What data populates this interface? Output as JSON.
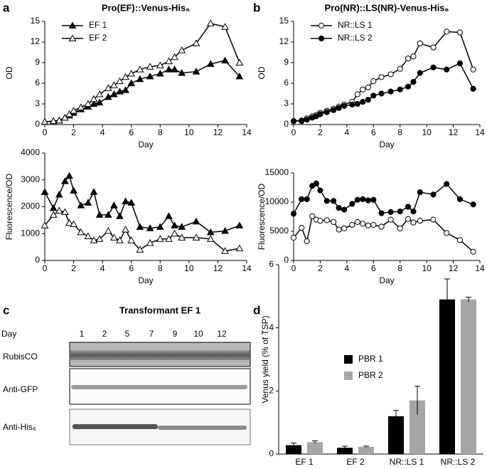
{
  "panel_labels": [
    "a",
    "b",
    "c",
    "d"
  ],
  "chart_data": [
    {
      "type": "line",
      "title": "Pro(EF)::Venus-His₆",
      "xlabel": "Day",
      "ylabel": "OD",
      "x": [
        0,
        0.6,
        1,
        1.4,
        1.7,
        2,
        2.5,
        3,
        3.4,
        3.8,
        4.4,
        4.8,
        5.2,
        5.6,
        6,
        6.6,
        7.3,
        8,
        8.6,
        9,
        9.5,
        10.5,
        11.5,
        12.5,
        13.5
      ],
      "xlim": [
        0,
        14
      ],
      "xticks": [
        0,
        2,
        4,
        6,
        8,
        10,
        12,
        14
      ],
      "ylim": [
        0,
        15
      ],
      "yticks": [
        0,
        3,
        6,
        9,
        12,
        15
      ],
      "legend": "upper left",
      "series": [
        {
          "name": "EF 1",
          "color": "#000000",
          "marker": "triangle",
          "filled": true,
          "values": [
            0.4,
            0.5,
            0.6,
            1.0,
            1.3,
            1.7,
            2.2,
            2.6,
            3.0,
            3.2,
            4.0,
            4.4,
            4.8,
            5.0,
            6.0,
            6.6,
            7.0,
            7.4,
            8.0,
            8.0,
            7.5,
            7.7,
            8.8,
            9.3,
            7.0
          ]
        },
        {
          "name": "EF 2",
          "color": "#000000",
          "marker": "triangle",
          "filled": false,
          "values": [
            0.4,
            0.5,
            0.6,
            1.0,
            1.5,
            2.0,
            2.5,
            3.0,
            3.7,
            4.4,
            5.3,
            5.7,
            6.3,
            6.9,
            7.4,
            8.0,
            8.4,
            8.6,
            9.2,
            9.8,
            10.8,
            11.8,
            14.7,
            14.2,
            9.0
          ]
        }
      ]
    },
    {
      "type": "line",
      "xlabel": "Day",
      "ylabel": "Fluorescence/OD",
      "x": [
        0,
        0.6,
        1,
        1.4,
        1.7,
        2,
        2.5,
        3,
        3.4,
        3.8,
        4.4,
        4.8,
        5.2,
        5.6,
        6,
        6.6,
        7.3,
        8,
        8.6,
        9,
        9.5,
        10.5,
        11.5,
        12.5,
        13.5
      ],
      "xlim": [
        0,
        14
      ],
      "xticks": [
        0,
        2,
        4,
        6,
        8,
        10,
        12,
        14
      ],
      "ylim": [
        0,
        4000
      ],
      "yticks": [
        0,
        1000,
        2000,
        3000,
        4000
      ],
      "series": [
        {
          "name": "EF 1",
          "color": "#000000",
          "marker": "triangle",
          "filled": true,
          "values": [
            2550,
            1950,
            2450,
            2950,
            3150,
            2600,
            2050,
            2150,
            2550,
            1700,
            1700,
            2050,
            1650,
            2200,
            2150,
            1250,
            1200,
            1250,
            1650,
            1300,
            1250,
            1450,
            1050,
            1100,
            1300
          ]
        },
        {
          "name": "EF 2",
          "color": "#000000",
          "marker": "triangle",
          "filled": false,
          "values": [
            1300,
            1700,
            1850,
            1800,
            1400,
            1350,
            1050,
            900,
            750,
            800,
            1100,
            850,
            750,
            1150,
            750,
            400,
            650,
            800,
            800,
            1000,
            850,
            850,
            800,
            350,
            450
          ]
        }
      ]
    },
    {
      "type": "line",
      "title": "Pro(NR)::LS(NR)-Venus-His₆",
      "xlabel": "Day",
      "ylabel": "OD",
      "x": [
        0,
        0.6,
        1,
        1.4,
        1.7,
        2,
        2.5,
        3,
        3.4,
        3.8,
        4.4,
        4.8,
        5.2,
        5.6,
        6,
        6.6,
        7.3,
        8,
        8.6,
        9,
        9.5,
        10.5,
        11.5,
        12.5,
        13.5
      ],
      "xlim": [
        0,
        14
      ],
      "xticks": [
        0,
        2,
        4,
        6,
        8,
        10,
        12,
        14
      ],
      "ylim": [
        0,
        15
      ],
      "yticks": [
        0,
        3,
        6,
        9,
        12,
        15
      ],
      "legend": "upper left",
      "series": [
        {
          "name": "NR::LS 1",
          "color": "#000000",
          "marker": "circle",
          "filled": false,
          "values": [
            0.5,
            0.6,
            0.9,
            1.2,
            1.4,
            1.7,
            2.0,
            2.3,
            2.6,
            2.9,
            3.3,
            4.4,
            5.1,
            5.4,
            6.3,
            6.9,
            7.3,
            8.1,
            9.6,
            9.9,
            11.8,
            11.2,
            13.5,
            13.4,
            8.0
          ]
        },
        {
          "name": "NR::LS 2",
          "color": "#000000",
          "marker": "circle",
          "filled": true,
          "values": [
            0.5,
            0.5,
            0.7,
            1.0,
            1.2,
            1.5,
            1.8,
            2.1,
            2.4,
            2.7,
            2.9,
            3.0,
            3.3,
            3.6,
            4.2,
            4.5,
            4.8,
            5.1,
            5.5,
            6.2,
            7.5,
            8.3,
            8.0,
            8.9,
            5.2
          ]
        }
      ]
    },
    {
      "type": "line",
      "xlabel": "Day",
      "ylabel": "Fluorescence/OD",
      "x": [
        0,
        0.6,
        1,
        1.4,
        1.7,
        2,
        2.5,
        3,
        3.4,
        3.8,
        4.4,
        4.8,
        5.2,
        5.6,
        6,
        6.6,
        7.3,
        8,
        8.6,
        9,
        9.5,
        10.5,
        11.5,
        12.5,
        13.5
      ],
      "xlim": [
        0,
        14
      ],
      "xticks": [
        0,
        2,
        4,
        6,
        8,
        10,
        12,
        14
      ],
      "ylim": [
        0,
        15000
      ],
      "yticks": [
        0,
        5000,
        10000,
        15000
      ],
      "series": [
        {
          "name": "NR::LS 1",
          "color": "#000000",
          "marker": "circle",
          "filled": false,
          "values": [
            3900,
            5600,
            3300,
            7600,
            7000,
            6800,
            6900,
            6600,
            5300,
            5500,
            6100,
            6600,
            6300,
            6000,
            6100,
            5800,
            7000,
            5500,
            7100,
            6500,
            6800,
            7000,
            4700,
            3500,
            1500
          ]
        },
        {
          "name": "NR::LS 2",
          "color": "#000000",
          "marker": "circle",
          "filled": true,
          "values": [
            8000,
            10500,
            10500,
            12800,
            13200,
            12000,
            10200,
            10200,
            9000,
            8700,
            9700,
            10400,
            10500,
            10300,
            10400,
            8100,
            8300,
            8400,
            9200,
            8400,
            11700,
            11300,
            13100,
            10500,
            9600
          ]
        }
      ]
    },
    {
      "type": "bar",
      "ylabel": "Venus yield (% of TSP)",
      "categories": [
        "EF 1",
        "EF 2",
        "NR::LS 1",
        "NR::LS 2"
      ],
      "ylim": [
        0,
        6
      ],
      "yticks": [
        0,
        2,
        4,
        6
      ],
      "legend": "upper left",
      "series": [
        {
          "name": "PBR 1",
          "color": "#000000",
          "values": [
            0.28,
            0.2,
            1.2,
            4.9
          ],
          "errors": [
            0.07,
            0.05,
            0.18,
            0.65
          ]
        },
        {
          "name": "PBR 2",
          "color": "#a6a6a6",
          "values": [
            0.38,
            0.23,
            1.7,
            4.9
          ],
          "errors": [
            0.04,
            0.02,
            0.45,
            0.07
          ]
        }
      ]
    }
  ],
  "blot": {
    "title": "Transformant EF 1",
    "day_label": "Day",
    "days": [
      1,
      2,
      5,
      7,
      9,
      10,
      12
    ],
    "rows": [
      "RubisCO",
      "Anti-GFP",
      "Anti-His₆"
    ]
  }
}
